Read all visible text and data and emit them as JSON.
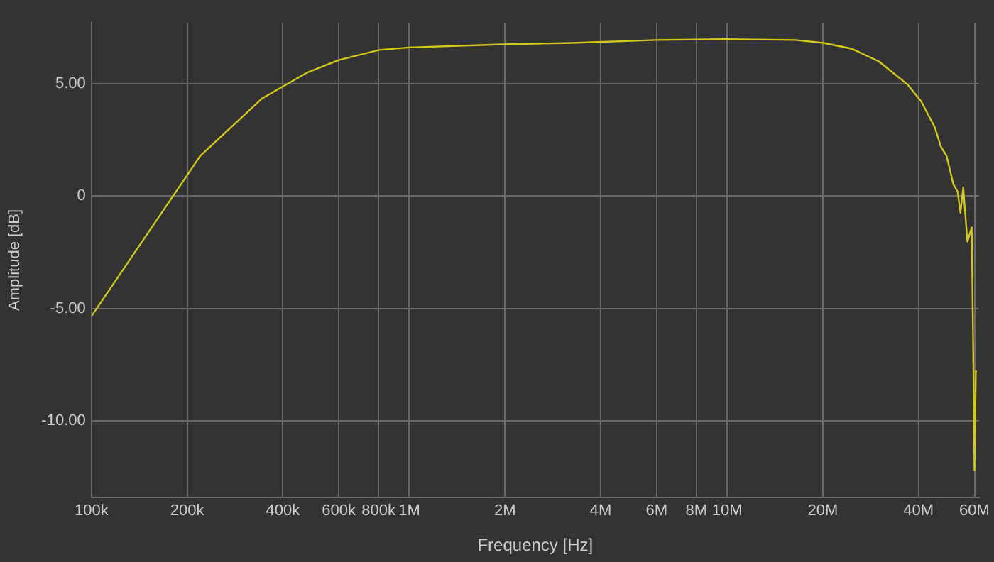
{
  "chart_data": {
    "type": "line",
    "xlabel": "Frequency [Hz]",
    "ylabel": "Amplitude [dB]",
    "log": "x",
    "grid": true,
    "legend": false,
    "marker": "none",
    "line_style": "solid",
    "xlim": [
      100000,
      62000000
    ],
    "ylim": [
      -13.4,
      7.7
    ],
    "xticks": [
      {
        "value": 100000,
        "label": "100k"
      },
      {
        "value": 200000,
        "label": "200k"
      },
      {
        "value": 400000,
        "label": "400k"
      },
      {
        "value": 600000,
        "label": "600k"
      },
      {
        "value": 800000,
        "label": "800k"
      },
      {
        "value": 1000000,
        "label": "1M"
      },
      {
        "value": 2000000,
        "label": "2M"
      },
      {
        "value": 4000000,
        "label": "4M"
      },
      {
        "value": 6000000,
        "label": "6M"
      },
      {
        "value": 8000000,
        "label": "8M"
      },
      {
        "value": 10000000,
        "label": "10M"
      },
      {
        "value": 20000000,
        "label": "20M"
      },
      {
        "value": 40000000,
        "label": "40M"
      },
      {
        "value": 60000000,
        "label": "60M"
      }
    ],
    "yticks": [
      {
        "value": -10,
        "label": "-10.00"
      },
      {
        "value": -5,
        "label": "-5.00"
      },
      0,
      {
        "value": 5,
        "label": "5.00"
      }
    ],
    "series": [
      {
        "color": "#d4c81a",
        "x": [
          100000,
          220000,
          344000,
          475000,
          600000,
          804000,
          1000000,
          1960000,
          3250000,
          5970000,
          10000000,
          16400000,
          20100000,
          24600000,
          30000000,
          36900000,
          40800000,
          45000000,
          47000000,
          49000000,
          51500000,
          53100000,
          54200000,
          55300000,
          57000000,
          58800000,
          59400000,
          60000000,
          60600000
        ],
        "values": [
          -5.35,
          1.78,
          4.33,
          5.47,
          6.04,
          6.49,
          6.6,
          6.74,
          6.8,
          6.93,
          6.97,
          6.93,
          6.8,
          6.55,
          5.98,
          4.96,
          4.2,
          3.05,
          2.2,
          1.78,
          0.51,
          0.19,
          -0.76,
          0.38,
          -2.04,
          -1.4,
          -6.49,
          -12.21,
          -7.76
        ]
      }
    ]
  }
}
